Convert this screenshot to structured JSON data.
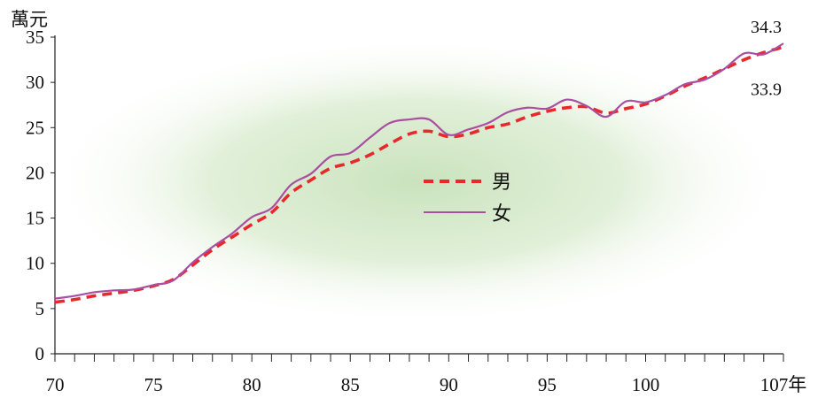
{
  "chart_data": {
    "type": "line",
    "title": "",
    "xlabel": "",
    "ylabel": "萬元",
    "x_unit": "年",
    "xlim": [
      70,
      107
    ],
    "ylim": [
      0,
      35
    ],
    "y_ticks": [
      0,
      5,
      10,
      15,
      20,
      25,
      30,
      35
    ],
    "x_tick_labels": [
      {
        "x": 70,
        "label": "70"
      },
      {
        "x": 75,
        "label": "75"
      },
      {
        "x": 80,
        "label": "80"
      },
      {
        "x": 85,
        "label": "85"
      },
      {
        "x": 90,
        "label": "90"
      },
      {
        "x": 95,
        "label": "95"
      },
      {
        "x": 100,
        "label": "100"
      },
      {
        "x": 107,
        "label": "107年"
      }
    ],
    "x": [
      70,
      71,
      72,
      73,
      74,
      75,
      76,
      77,
      78,
      79,
      80,
      81,
      82,
      83,
      84,
      85,
      86,
      87,
      88,
      89,
      90,
      91,
      92,
      93,
      94,
      95,
      96,
      97,
      98,
      99,
      100,
      101,
      102,
      103,
      104,
      105,
      106,
      107
    ],
    "series": [
      {
        "name": "男",
        "color": "#e8282b",
        "dash": true,
        "values": [
          5.7,
          6.0,
          6.4,
          6.7,
          7.0,
          7.5,
          8.2,
          9.8,
          11.5,
          12.9,
          14.3,
          15.6,
          17.8,
          19.2,
          20.5,
          21.1,
          22.0,
          23.2,
          24.3,
          24.6,
          24.0,
          24.3,
          25.0,
          25.4,
          26.2,
          26.8,
          27.2,
          27.3,
          26.6,
          27.1,
          27.6,
          28.5,
          29.6,
          30.5,
          31.5,
          32.5,
          33.3,
          33.9
        ]
      },
      {
        "name": "女",
        "color": "#a94fa2",
        "dash": false,
        "values": [
          6.1,
          6.4,
          6.8,
          7.0,
          7.1,
          7.6,
          8.1,
          10.1,
          11.8,
          13.3,
          15.1,
          16.1,
          18.7,
          19.9,
          21.8,
          22.2,
          23.9,
          25.5,
          25.9,
          25.9,
          24.2,
          24.8,
          25.5,
          26.7,
          27.2,
          27.1,
          28.1,
          27.4,
          26.2,
          27.9,
          27.8,
          28.6,
          29.8,
          30.3,
          31.5,
          33.2,
          33.1,
          34.3
        ]
      }
    ],
    "annotations": [
      {
        "label": "34.3",
        "series": "女"
      },
      {
        "label": "33.9",
        "series": "男"
      }
    ],
    "legend": {
      "position": "center",
      "items": [
        "男",
        "女"
      ]
    },
    "grid": false
  }
}
